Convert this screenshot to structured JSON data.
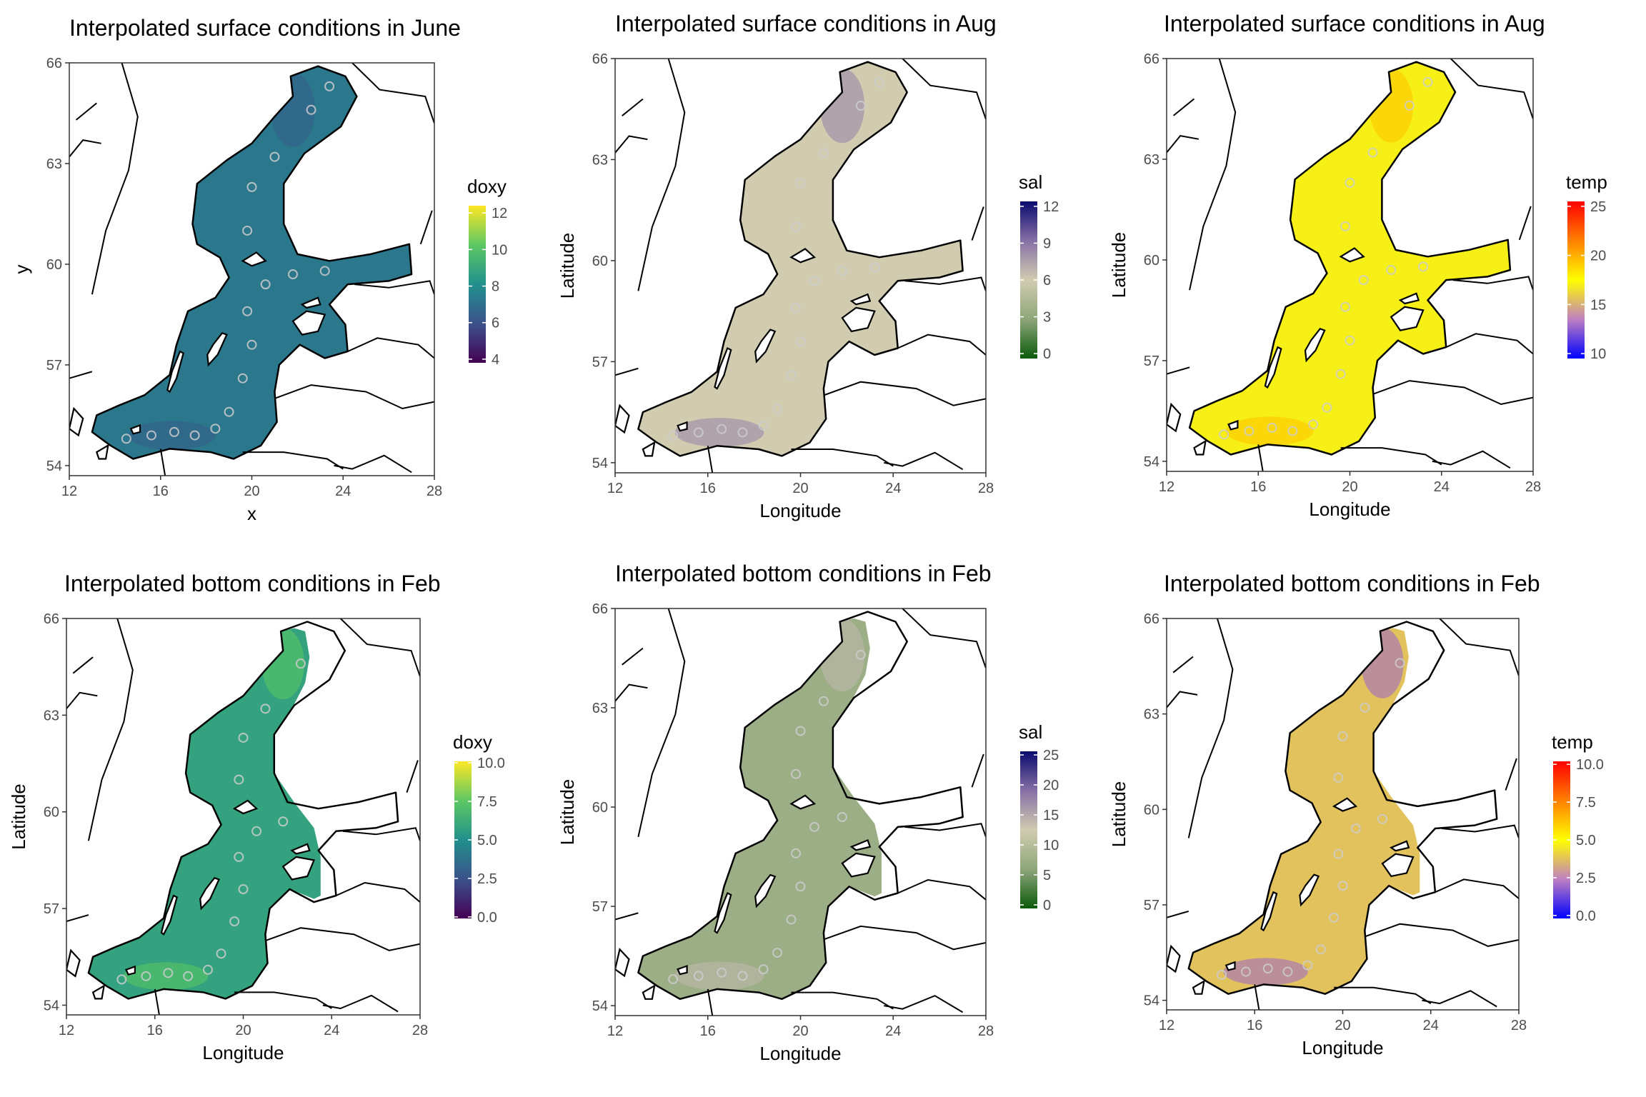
{
  "chart_data": [
    {
      "type": "heatmap",
      "title": "Interpolated surface conditions in June",
      "xlabel": "x",
      "ylabel": "y",
      "xlim": [
        12,
        28
      ],
      "ylim": [
        53.7,
        66
      ],
      "x_ticks": [
        12,
        16,
        20,
        24,
        28
      ],
      "y_ticks": [
        54,
        57,
        60,
        63,
        66
      ],
      "extent": "full",
      "legend": {
        "title": "doxy",
        "position": "right",
        "ticks": [
          "4",
          "6",
          "8",
          "10",
          "12"
        ],
        "tick_values": [
          4,
          6,
          8,
          10,
          12
        ],
        "range": [
          3.8,
          12.4
        ],
        "palette": "viridis",
        "colors": [
          "#440154",
          "#3b528b",
          "#21908c",
          "#5dc863",
          "#fde725"
        ]
      },
      "typical_value": "~7",
      "grid": false
    },
    {
      "type": "heatmap",
      "title": "Interpolated surface conditions in Aug",
      "xlabel": "Longitude",
      "ylabel": "Latitude",
      "xlim": [
        12,
        28
      ],
      "ylim": [
        53.7,
        66
      ],
      "x_ticks": [
        12,
        16,
        20,
        24,
        28
      ],
      "y_ticks": [
        54,
        57,
        60,
        63,
        66
      ],
      "extent": "full",
      "legend": {
        "title": "sal",
        "position": "right",
        "ticks": [
          "0",
          "3",
          "6",
          "9",
          "12"
        ],
        "tick_values": [
          0,
          3,
          6,
          9,
          12
        ],
        "range": [
          -0.4,
          12.4
        ],
        "palette": "green-beige-navy",
        "colors": [
          "#0b5a0b",
          "#8ea67a",
          "#d1ccb0",
          "#8770a6",
          "#0a0a6e"
        ]
      },
      "typical_value": "~6",
      "grid": false
    },
    {
      "type": "heatmap",
      "title": "Interpolated surface conditions in Aug",
      "xlabel": "Longitude",
      "ylabel": "Latitude",
      "xlim": [
        12,
        28
      ],
      "ylim": [
        53.7,
        66
      ],
      "x_ticks": [
        12,
        16,
        20,
        24,
        28
      ],
      "y_ticks": [
        54,
        57,
        60,
        63,
        66
      ],
      "extent": "full",
      "legend": {
        "title": "temp",
        "position": "right",
        "ticks": [
          "10",
          "15",
          "20",
          "25"
        ],
        "tick_values": [
          10,
          15,
          20,
          25
        ],
        "range": [
          9.5,
          25.5
        ],
        "palette": "blue-yellow-red",
        "colors": [
          "#0000ff",
          "#c080c0",
          "#ffff00",
          "#ff8000",
          "#ff0000"
        ]
      },
      "typical_value": "~17",
      "grid": false
    },
    {
      "type": "heatmap",
      "title": "Interpolated bottom conditions in Feb",
      "xlabel": "Longitude",
      "ylabel": "Latitude",
      "xlim": [
        12,
        28
      ],
      "ylim": [
        53.7,
        66
      ],
      "x_ticks": [
        12,
        16,
        20,
        24,
        28
      ],
      "y_ticks": [
        54,
        57,
        60,
        63,
        66
      ],
      "extent": "bottom",
      "legend": {
        "title": "doxy",
        "position": "right",
        "ticks": [
          "0.0",
          "2.5",
          "5.0",
          "7.5",
          "10.0"
        ],
        "tick_values": [
          0,
          2.5,
          5,
          7.5,
          10
        ],
        "range": [
          -0.1,
          10.1
        ],
        "palette": "viridis",
        "colors": [
          "#440154",
          "#3b528b",
          "#21908c",
          "#5dc863",
          "#fde725"
        ]
      },
      "typical_value": "~6",
      "grid": false
    },
    {
      "type": "heatmap",
      "title": "Interpolated bottom conditions in Feb",
      "xlabel": "Longitude",
      "ylabel": "Latitude",
      "xlim": [
        12,
        28
      ],
      "ylim": [
        53.7,
        66
      ],
      "x_ticks": [
        12,
        16,
        20,
        24,
        28
      ],
      "y_ticks": [
        54,
        57,
        60,
        63,
        66
      ],
      "extent": "bottom",
      "legend": {
        "title": "sal",
        "position": "right",
        "ticks": [
          "0",
          "5",
          "10",
          "15",
          "20",
          "25"
        ],
        "tick_values": [
          0,
          5,
          10,
          15,
          20,
          25
        ],
        "range": [
          -0.6,
          25.6
        ],
        "palette": "green-beige-navy",
        "colors": [
          "#0b5a0b",
          "#8ea67a",
          "#d1ccb0",
          "#8770a6",
          "#0a0a6e"
        ]
      },
      "typical_value": "~7",
      "grid": false
    },
    {
      "type": "heatmap",
      "title": "Interpolated bottom conditions in Feb",
      "xlabel": "Longitude",
      "ylabel": "Latitude",
      "xlim": [
        12,
        28
      ],
      "ylim": [
        53.7,
        66
      ],
      "x_ticks": [
        12,
        16,
        20,
        24,
        28
      ],
      "y_ticks": [
        54,
        57,
        60,
        63,
        66
      ],
      "extent": "bottom",
      "legend": {
        "title": "temp",
        "position": "right",
        "ticks": [
          "0.0",
          "2.5",
          "5.0",
          "7.5",
          "10.0"
        ],
        "tick_values": [
          0,
          2.5,
          5,
          7.5,
          10
        ],
        "range": [
          -0.2,
          10.2
        ],
        "palette": "blue-yellow-red",
        "colors": [
          "#0000ff",
          "#c080c0",
          "#ffff00",
          "#ff8000",
          "#ff0000"
        ]
      },
      "typical_value": "~4",
      "grid": false
    }
  ]
}
